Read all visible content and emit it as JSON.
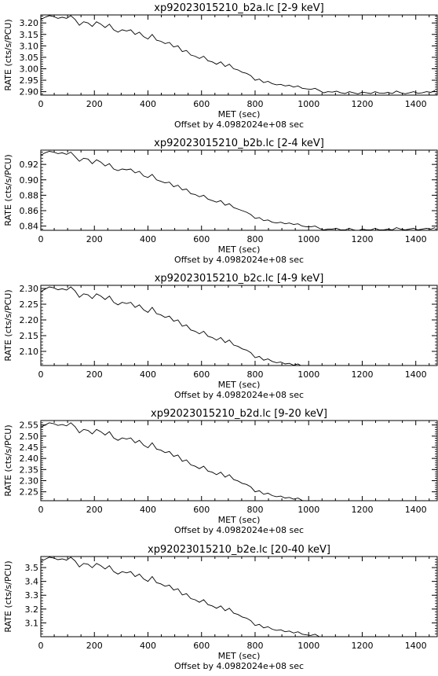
{
  "chart_data": [
    {
      "type": "line",
      "title": "xp92023015210_b2a.lc [2-9 keV]",
      "xlabel": "MET (sec)",
      "xoffset_label": "Offset by 4.0982024e+08 sec",
      "ylabel": "RATE (cts/s/PCU)",
      "xlim": [
        0,
        1480
      ],
      "ylim": [
        2.885,
        3.235
      ],
      "xticks": [
        0,
        200,
        400,
        600,
        800,
        1000,
        1200,
        1400
      ],
      "yticks": [
        2.9,
        2.95,
        3.0,
        3.05,
        3.1,
        3.15,
        3.2
      ],
      "ytick_labels": [
        "2.90",
        "2.95",
        "3.00",
        "3.05",
        "3.10",
        "3.15",
        "3.20"
      ],
      "grid": false,
      "x": [
        0,
        16,
        32,
        48,
        64,
        80,
        96,
        112,
        128,
        144,
        160,
        176,
        192,
        208,
        224,
        240,
        256,
        272,
        288,
        304,
        320,
        336,
        352,
        368,
        384,
        400,
        416,
        432,
        448,
        464,
        480,
        496,
        512,
        528,
        544,
        560,
        576,
        592,
        608,
        624,
        640,
        656,
        672,
        688,
        704,
        720,
        736,
        752,
        768,
        784,
        800,
        816,
        832,
        848,
        864,
        880,
        896,
        912,
        928,
        944,
        960,
        976,
        992,
        1008,
        1024,
        1040,
        1056,
        1072,
        1088,
        1104,
        1120,
        1136,
        1152,
        1168,
        1184,
        1200,
        1216,
        1232,
        1248,
        1264,
        1280,
        1296,
        1312,
        1328,
        1344,
        1360,
        1376,
        1392,
        1408,
        1424,
        1440,
        1456,
        1472
      ],
      "y": [
        3.215,
        3.225,
        3.232,
        3.228,
        3.22,
        3.225,
        3.22,
        3.232,
        3.215,
        3.19,
        3.205,
        3.2,
        3.185,
        3.205,
        3.195,
        3.18,
        3.195,
        3.17,
        3.16,
        3.17,
        3.165,
        3.17,
        3.15,
        3.16,
        3.14,
        3.13,
        3.15,
        3.125,
        3.12,
        3.11,
        3.115,
        3.095,
        3.1,
        3.075,
        3.08,
        3.06,
        3.055,
        3.045,
        3.055,
        3.035,
        3.03,
        3.02,
        3.03,
        3.01,
        3.02,
        3.0,
        2.995,
        2.985,
        2.98,
        2.97,
        2.95,
        2.955,
        2.94,
        2.945,
        2.935,
        2.93,
        2.932,
        2.925,
        2.928,
        2.92,
        2.925,
        2.915,
        2.912,
        2.91,
        2.915,
        2.905,
        2.895,
        2.9,
        2.898,
        2.902,
        2.895,
        2.892,
        2.9,
        2.895,
        2.89,
        2.898,
        2.895,
        2.892,
        2.9,
        2.894,
        2.893,
        2.897,
        2.892,
        2.903,
        2.895,
        2.891,
        2.895,
        2.9,
        2.893,
        2.895,
        2.9,
        2.897,
        2.905
      ]
    },
    {
      "type": "line",
      "title": "xp92023015210_b2b.lc [2-4 keV]",
      "xlabel": "MET (sec)",
      "xoffset_label": "Offset by 4.0982024e+08 sec",
      "ylabel": "RATE (cts/s/PCU)",
      "xlim": [
        0,
        1480
      ],
      "ylim": [
        0.8345,
        0.9385
      ],
      "xticks": [
        0,
        200,
        400,
        600,
        800,
        1000,
        1200,
        1400
      ],
      "yticks": [
        0.84,
        0.86,
        0.88,
        0.9,
        0.92
      ],
      "ytick_labels": [
        "0.84",
        "0.86",
        "0.88",
        "0.90",
        "0.92"
      ],
      "grid": false,
      "x": [
        0,
        16,
        32,
        48,
        64,
        80,
        96,
        112,
        128,
        144,
        160,
        176,
        192,
        208,
        224,
        240,
        256,
        272,
        288,
        304,
        320,
        336,
        352,
        368,
        384,
        400,
        416,
        432,
        448,
        464,
        480,
        496,
        512,
        528,
        544,
        560,
        576,
        592,
        608,
        624,
        640,
        656,
        672,
        688,
        704,
        720,
        736,
        752,
        768,
        784,
        800,
        816,
        832,
        848,
        864,
        880,
        896,
        912,
        928,
        944,
        960,
        976,
        992,
        1008,
        1024,
        1040,
        1056,
        1072,
        1088,
        1104,
        1120,
        1136,
        1152,
        1168,
        1184,
        1200,
        1216,
        1232,
        1248,
        1264,
        1280,
        1296,
        1312,
        1328,
        1344,
        1360,
        1376,
        1392,
        1408,
        1424,
        1440,
        1456,
        1472
      ],
      "y": [
        0.932,
        0.935,
        0.937,
        0.936,
        0.934,
        0.935,
        0.933,
        0.936,
        0.93,
        0.924,
        0.928,
        0.927,
        0.921,
        0.926,
        0.923,
        0.918,
        0.921,
        0.914,
        0.912,
        0.914,
        0.913,
        0.914,
        0.909,
        0.911,
        0.905,
        0.903,
        0.907,
        0.9,
        0.898,
        0.896,
        0.897,
        0.891,
        0.893,
        0.887,
        0.888,
        0.882,
        0.881,
        0.878,
        0.88,
        0.875,
        0.873,
        0.871,
        0.873,
        0.867,
        0.869,
        0.864,
        0.862,
        0.86,
        0.858,
        0.855,
        0.85,
        0.851,
        0.847,
        0.848,
        0.845,
        0.844,
        0.845,
        0.843,
        0.844,
        0.842,
        0.843,
        0.84,
        0.839,
        0.839,
        0.84,
        0.837,
        0.835,
        0.836,
        0.836,
        0.837,
        0.835,
        0.835,
        0.837,
        0.835,
        0.834,
        0.836,
        0.835,
        0.835,
        0.837,
        0.835,
        0.835,
        0.836,
        0.835,
        0.838,
        0.836,
        0.835,
        0.836,
        0.837,
        0.835,
        0.836,
        0.837,
        0.836,
        0.838
      ]
    },
    {
      "type": "line",
      "title": "xp92023015210_b2c.lc [4-9 keV]",
      "xlabel": "MET (sec)",
      "xoffset_label": "Offset by 4.0982024e+08 sec",
      "ylabel": "RATE (cts/s/PCU)",
      "xlim": [
        0,
        1480
      ],
      "ylim": [
        2.055,
        2.31
      ],
      "xticks": [
        0,
        200,
        400,
        600,
        800,
        1000,
        1200,
        1400
      ],
      "yticks": [
        2.1,
        2.15,
        2.2,
        2.25,
        2.3
      ],
      "ytick_labels": [
        "2.10",
        "2.15",
        "2.20",
        "2.25",
        "2.30"
      ],
      "grid": false,
      "x": [
        0,
        16,
        32,
        48,
        64,
        80,
        96,
        112,
        128,
        144,
        160,
        176,
        192,
        208,
        224,
        240,
        256,
        272,
        288,
        304,
        320,
        336,
        352,
        368,
        384,
        400,
        416,
        432,
        448,
        464,
        480,
        496,
        512,
        528,
        544,
        560,
        576,
        592,
        608,
        624,
        640,
        656,
        672,
        688,
        704,
        720,
        736,
        752,
        768,
        784,
        800,
        816,
        832,
        848,
        864,
        880,
        896,
        912,
        928,
        944,
        960,
        976,
        992,
        1008,
        1024,
        1040,
        1056,
        1072,
        1088,
        1104,
        1120,
        1136,
        1152,
        1168,
        1184,
        1200,
        1216,
        1232,
        1248,
        1264,
        1280,
        1296,
        1312,
        1328,
        1344,
        1360,
        1376,
        1392,
        1408,
        1424,
        1440,
        1456,
        1472
      ],
      "y": [
        2.29,
        2.298,
        2.305,
        2.302,
        2.296,
        2.299,
        2.295,
        2.305,
        2.292,
        2.272,
        2.283,
        2.28,
        2.268,
        2.283,
        2.276,
        2.265,
        2.276,
        2.256,
        2.248,
        2.256,
        2.252,
        2.256,
        2.24,
        2.248,
        2.232,
        2.224,
        2.24,
        2.22,
        2.216,
        2.208,
        2.212,
        2.196,
        2.2,
        2.18,
        2.184,
        2.168,
        2.164,
        2.156,
        2.164,
        2.148,
        2.144,
        2.136,
        2.144,
        2.128,
        2.136,
        2.12,
        2.116,
        2.108,
        2.104,
        2.096,
        2.08,
        2.084,
        2.072,
        2.076,
        2.068,
        2.064,
        2.066,
        2.06,
        2.062,
        2.056,
        2.06,
        2.052,
        2.05,
        2.048,
        2.052,
        2.044,
        2.036,
        2.04,
        2.038,
        2.042,
        2.036,
        2.034,
        2.04,
        2.036,
        2.032,
        2.038,
        2.036,
        2.034,
        2.04,
        2.035,
        2.034,
        2.038,
        2.034,
        2.042,
        2.036,
        2.033,
        2.036,
        2.04,
        2.034,
        2.036,
        2.04,
        2.038,
        2.044
      ]
    },
    {
      "type": "line",
      "title": "xp92023015210_b2d.lc [9-20 keV]",
      "xlabel": "MET (sec)",
      "xoffset_label": "Offset by 4.0982024e+08 sec",
      "ylabel": "RATE (cts/s/PCU)",
      "xlim": [
        0,
        1480
      ],
      "ylim": [
        2.21,
        2.57
      ],
      "xticks": [
        0,
        200,
        400,
        600,
        800,
        1000,
        1200,
        1400
      ],
      "yticks": [
        2.25,
        2.3,
        2.35,
        2.4,
        2.45,
        2.5,
        2.55
      ],
      "ytick_labels": [
        "2.25",
        "2.30",
        "2.35",
        "2.40",
        "2.45",
        "2.50",
        "2.55"
      ],
      "grid": false,
      "x": [
        0,
        16,
        32,
        48,
        64,
        80,
        96,
        112,
        128,
        144,
        160,
        176,
        192,
        208,
        224,
        240,
        256,
        272,
        288,
        304,
        320,
        336,
        352,
        368,
        384,
        400,
        416,
        432,
        448,
        464,
        480,
        496,
        512,
        528,
        544,
        560,
        576,
        592,
        608,
        624,
        640,
        656,
        672,
        688,
        704,
        720,
        736,
        752,
        768,
        784,
        800,
        816,
        832,
        848,
        864,
        880,
        896,
        912,
        928,
        944,
        960,
        976,
        992,
        1008,
        1024,
        1040,
        1056,
        1072,
        1088,
        1104,
        1120,
        1136,
        1152,
        1168,
        1184,
        1200,
        1216,
        1232,
        1248,
        1264,
        1280,
        1296,
        1312,
        1328,
        1344,
        1360,
        1376,
        1392,
        1408,
        1424,
        1440,
        1456,
        1472
      ],
      "y": [
        2.54,
        2.55,
        2.56,
        2.556,
        2.548,
        2.552,
        2.546,
        2.56,
        2.542,
        2.515,
        2.53,
        2.526,
        2.51,
        2.53,
        2.52,
        2.505,
        2.52,
        2.492,
        2.481,
        2.492,
        2.487,
        2.492,
        2.47,
        2.481,
        2.459,
        2.448,
        2.47,
        2.442,
        2.437,
        2.426,
        2.431,
        2.409,
        2.415,
        2.387,
        2.393,
        2.371,
        2.365,
        2.354,
        2.365,
        2.343,
        2.338,
        2.327,
        2.338,
        2.316,
        2.327,
        2.305,
        2.299,
        2.288,
        2.283,
        2.272,
        2.25,
        2.255,
        2.239,
        2.244,
        2.233,
        2.228,
        2.231,
        2.222,
        2.225,
        2.217,
        2.222,
        2.211,
        2.208,
        2.206,
        2.211,
        2.2,
        2.189,
        2.195,
        2.192,
        2.198,
        2.189,
        2.187,
        2.195,
        2.189,
        2.184,
        2.192,
        2.189,
        2.187,
        2.195,
        2.188,
        2.187,
        2.192,
        2.187,
        2.198,
        2.189,
        2.186,
        2.189,
        2.195,
        2.187,
        2.189,
        2.195,
        2.192,
        2.2
      ]
    },
    {
      "type": "line",
      "title": "xp92023015210_b2e.lc [20-40 keV]",
      "xlabel": "MET (sec)",
      "xoffset_label": "Offset by 4.0982024e+08 sec",
      "ylabel": "RATE (cts/s/PCU)",
      "xlim": [
        0,
        1480
      ],
      "ylim": [
        3.0,
        3.58
      ],
      "xticks": [
        0,
        200,
        400,
        600,
        800,
        1000,
        1200,
        1400
      ],
      "yticks": [
        3.1,
        3.2,
        3.3,
        3.4,
        3.5
      ],
      "ytick_labels": [
        "3.1",
        "3.2",
        "3.3",
        "3.4",
        "3.5"
      ],
      "grid": false,
      "x": [
        0,
        16,
        32,
        48,
        64,
        80,
        96,
        112,
        128,
        144,
        160,
        176,
        192,
        208,
        224,
        240,
        256,
        272,
        288,
        304,
        320,
        336,
        352,
        368,
        384,
        400,
        416,
        432,
        448,
        464,
        480,
        496,
        512,
        528,
        544,
        560,
        576,
        592,
        608,
        624,
        640,
        656,
        672,
        688,
        704,
        720,
        736,
        752,
        768,
        784,
        800,
        816,
        832,
        848,
        864,
        880,
        896,
        912,
        928,
        944,
        960,
        976,
        992,
        1008,
        1024,
        1040,
        1056,
        1072,
        1088,
        1104,
        1120,
        1136,
        1152,
        1168,
        1184,
        1200,
        1216,
        1232,
        1248,
        1264,
        1280,
        1296,
        1312,
        1328,
        1344,
        1360,
        1376,
        1392,
        1408,
        1424,
        1440,
        1456,
        1472
      ],
      "y": [
        3.545,
        3.56,
        3.575,
        3.569,
        3.557,
        3.563,
        3.554,
        3.575,
        3.548,
        3.505,
        3.53,
        3.524,
        3.499,
        3.53,
        3.514,
        3.49,
        3.514,
        3.471,
        3.453,
        3.471,
        3.462,
        3.471,
        3.435,
        3.453,
        3.418,
        3.4,
        3.435,
        3.391,
        3.382,
        3.365,
        3.373,
        3.338,
        3.347,
        3.302,
        3.311,
        3.276,
        3.267,
        3.249,
        3.267,
        3.232,
        3.223,
        3.206,
        3.223,
        3.188,
        3.206,
        3.17,
        3.161,
        3.143,
        3.134,
        3.116,
        3.081,
        3.089,
        3.064,
        3.072,
        3.054,
        3.046,
        3.05,
        3.036,
        3.041,
        3.027,
        3.036,
        3.018,
        3.013,
        3.009,
        3.018,
        3.0,
        2.982,
        2.991,
        2.987,
        2.996,
        2.982,
        2.978,
        2.991,
        2.982,
        2.973,
        2.987,
        2.982,
        2.978,
        2.991,
        2.98,
        2.978,
        2.987,
        2.978,
        2.996,
        2.982,
        2.977,
        2.982,
        2.991,
        2.978,
        2.982,
        2.991,
        2.987,
        3.0
      ]
    }
  ]
}
